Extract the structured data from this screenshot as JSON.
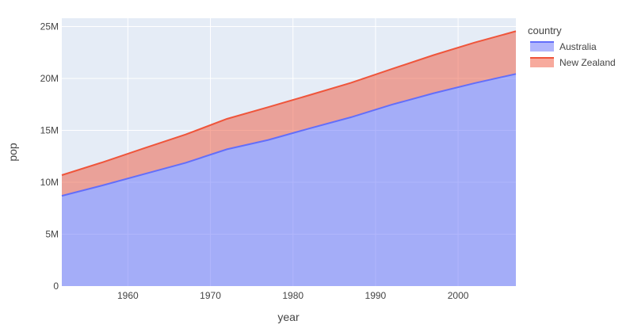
{
  "chart_data": {
    "type": "area",
    "stacked": true,
    "xlabel": "year",
    "ylabel": "pop",
    "xlim": [
      1952,
      2007
    ],
    "ylim": [
      0,
      25800000
    ],
    "x_ticks": [
      1960,
      1970,
      1980,
      1990,
      2000
    ],
    "x_tick_labels": [
      "1960",
      "1970",
      "1980",
      "1990",
      "2000"
    ],
    "y_ticks": [
      0,
      5000000,
      10000000,
      15000000,
      20000000,
      25000000
    ],
    "y_tick_labels": [
      "0",
      "5M",
      "10M",
      "15M",
      "20M",
      "25M"
    ],
    "grid": true,
    "legend_title": "country",
    "legend_position": "top-right",
    "x": [
      1952,
      1957,
      1962,
      1967,
      1972,
      1977,
      1982,
      1987,
      1992,
      1997,
      2002,
      2007
    ],
    "series": [
      {
        "name": "Australia",
        "color": "#636efa",
        "values": [
          8691212,
          9712569,
          10794968,
          11872264,
          13177000,
          14074100,
          15184200,
          16257249,
          17481977,
          18565243,
          19546792,
          20434176
        ]
      },
      {
        "name": "New Zealand",
        "color": "#ef553b",
        "values": [
          1994794,
          2229407,
          2488550,
          2728150,
          2929100,
          3164900,
          3210650,
          3317166,
          3437674,
          3676187,
          3908037,
          4115771
        ]
      }
    ],
    "colors": {
      "plot_background": "#e5ecf6",
      "gridline": "#ffffff"
    }
  }
}
